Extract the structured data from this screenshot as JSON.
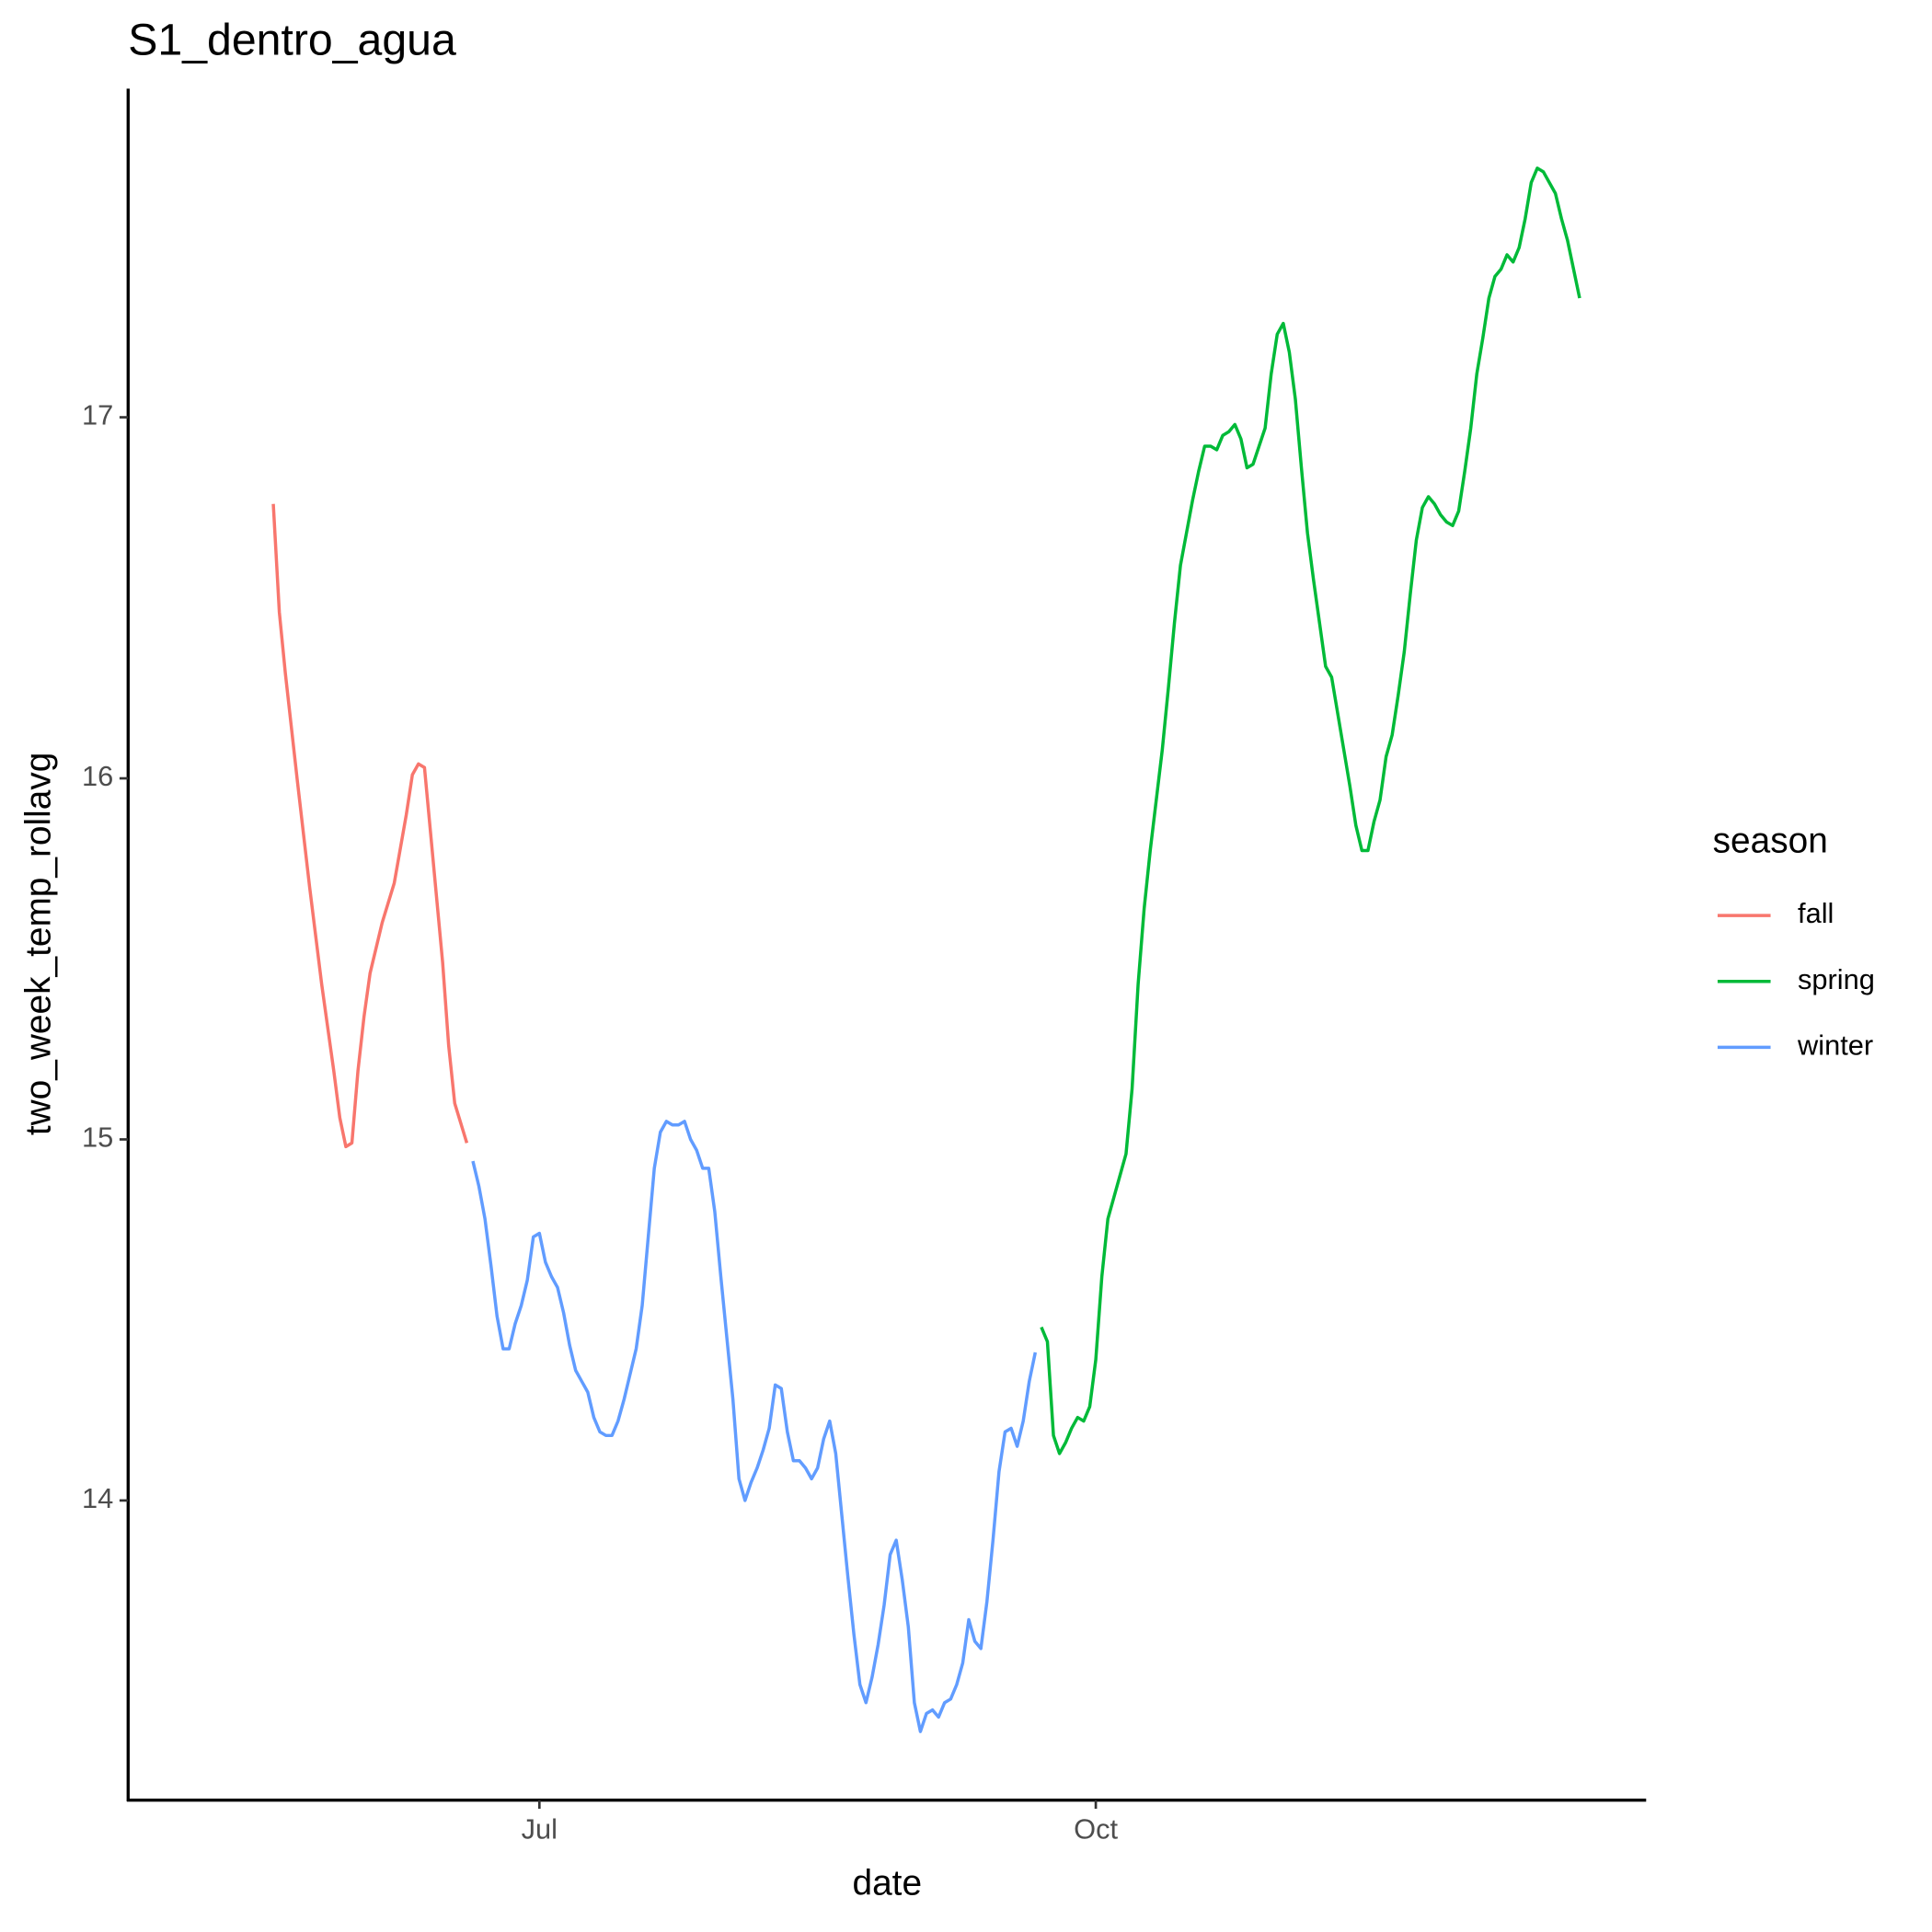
{
  "chart_data": {
    "type": "line",
    "title": "S1_dentro_agua",
    "x_label": "date",
    "y_label": "two_week_temp_rollavg",
    "legend_title": "season",
    "legend": "right",
    "xlim": [
      -68,
      183
    ],
    "xticks": [
      {
        "value": 0,
        "label": "Jul"
      },
      {
        "value": 92,
        "label": "Oct"
      }
    ],
    "ylim": [
      13.17,
      17.91
    ],
    "yticks": [
      14,
      15,
      16,
      17
    ],
    "series": [
      {
        "name": "fall",
        "color": "#F8766D",
        "x": [
          -44,
          -43,
          -42,
          -40,
          -38,
          -36,
          -34,
          -33,
          -32,
          -31,
          -30,
          -29,
          -28,
          -26,
          -24,
          -22,
          -21,
          -20,
          -19,
          -17,
          -16,
          -15,
          -14,
          -12
        ],
        "values": [
          16.76,
          16.46,
          16.29,
          15.99,
          15.7,
          15.43,
          15.19,
          15.06,
          14.98,
          14.99,
          15.19,
          15.34,
          15.46,
          15.6,
          15.71,
          15.9,
          16.01,
          16.04,
          16.03,
          15.67,
          15.49,
          15.26,
          15.1,
          14.99
        ]
      },
      {
        "name": "spring",
        "color": "#00BA38",
        "x": [
          83,
          84,
          85,
          86,
          87,
          88,
          89,
          90,
          91,
          92,
          93,
          94,
          95,
          96,
          97,
          98,
          99,
          100,
          101,
          102,
          103,
          104,
          105,
          106,
          107,
          108,
          109,
          110,
          111,
          112,
          113,
          114,
          115,
          116,
          117,
          118,
          119,
          120,
          121,
          122,
          123,
          124,
          125,
          126,
          127,
          128,
          129,
          130,
          131,
          132,
          133,
          134,
          135,
          136,
          137,
          138,
          139,
          140,
          141,
          142,
          143,
          144,
          145,
          146,
          147,
          148,
          149,
          150,
          151,
          152,
          153,
          154,
          155,
          156,
          157,
          158,
          159,
          160,
          161,
          162,
          163,
          164,
          165,
          166,
          167,
          168,
          169,
          170,
          171,
          172
        ],
        "values": [
          14.48,
          14.44,
          14.18,
          14.13,
          14.16,
          14.2,
          14.23,
          14.22,
          14.26,
          14.39,
          14.62,
          14.78,
          14.84,
          14.9,
          14.96,
          15.14,
          15.43,
          15.64,
          15.8,
          15.94,
          16.08,
          16.25,
          16.43,
          16.59,
          16.68,
          16.77,
          16.85,
          16.92,
          16.92,
          16.91,
          16.95,
          16.96,
          16.98,
          16.94,
          16.86,
          16.87,
          16.92,
          16.97,
          17.12,
          17.23,
          17.26,
          17.18,
          17.05,
          16.86,
          16.68,
          16.55,
          16.43,
          16.31,
          16.28,
          16.18,
          16.08,
          15.98,
          15.87,
          15.8,
          15.8,
          15.88,
          15.94,
          16.06,
          16.12,
          16.23,
          16.35,
          16.51,
          16.66,
          16.75,
          16.78,
          16.76,
          16.73,
          16.71,
          16.7,
          16.74,
          16.85,
          16.97,
          17.12,
          17.22,
          17.33,
          17.39,
          17.41,
          17.45,
          17.43,
          17.47,
          17.55,
          17.65,
          17.69,
          17.68,
          17.65,
          17.62,
          17.55,
          17.49,
          17.41,
          17.33
        ]
      },
      {
        "name": "winter",
        "color": "#619CFF",
        "x": [
          -11,
          -10,
          -9,
          -8,
          -7,
          -6,
          -5,
          -4,
          -3,
          -2,
          -1,
          0,
          1,
          2,
          3,
          4,
          5,
          6,
          7,
          8,
          9,
          10,
          11,
          12,
          13,
          14,
          15,
          16,
          17,
          18,
          19,
          20,
          21,
          22,
          23,
          24,
          25,
          26,
          27,
          28,
          29,
          30,
          31,
          32,
          33,
          34,
          35,
          36,
          37,
          38,
          39,
          40,
          41,
          42,
          43,
          44,
          45,
          46,
          47,
          48,
          49,
          50,
          51,
          52,
          53,
          54,
          55,
          56,
          57,
          58,
          59,
          60,
          61,
          62,
          63,
          64,
          65,
          66,
          67,
          68,
          69,
          70,
          71,
          72,
          73,
          74,
          75,
          76,
          77,
          78,
          79,
          80,
          81,
          82
        ],
        "values": [
          14.94,
          14.87,
          14.78,
          14.65,
          14.51,
          14.42,
          14.42,
          14.49,
          14.54,
          14.61,
          14.73,
          14.74,
          14.66,
          14.62,
          14.59,
          14.52,
          14.43,
          14.36,
          14.33,
          14.3,
          14.23,
          14.19,
          14.18,
          14.18,
          14.22,
          14.28,
          14.35,
          14.42,
          14.54,
          14.73,
          14.92,
          15.02,
          15.05,
          15.04,
          15.04,
          15.05,
          15.0,
          14.97,
          14.92,
          14.92,
          14.8,
          14.62,
          14.45,
          14.28,
          14.06,
          14.0,
          14.05,
          14.09,
          14.14,
          14.2,
          14.32,
          14.31,
          14.19,
          14.11,
          14.11,
          14.09,
          14.06,
          14.09,
          14.17,
          14.22,
          14.13,
          13.96,
          13.79,
          13.63,
          13.49,
          13.44,
          13.51,
          13.6,
          13.71,
          13.85,
          13.89,
          13.78,
          13.65,
          13.44,
          13.36,
          13.41,
          13.42,
          13.4,
          13.44,
          13.45,
          13.49,
          13.55,
          13.67,
          13.61,
          13.59,
          13.72,
          13.89,
          14.08,
          14.19,
          14.2,
          14.15,
          14.22,
          14.33,
          14.41
        ]
      }
    ]
  }
}
